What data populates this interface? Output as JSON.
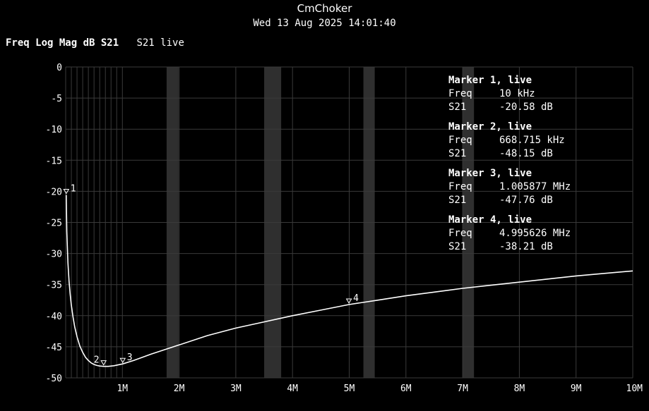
{
  "header": {
    "title": "CmChoker",
    "datetime": "Wed 13 Aug 2025 14:01:40",
    "trace_format": "Freq Log Mag dB S21",
    "trace_name": "S21 live"
  },
  "colors": {
    "background": "#000000",
    "trace": "#ffffff",
    "grid": "#3a3a3a",
    "band": "#2f2f2f"
  },
  "chart_data": {
    "type": "line",
    "title": "CmChoker",
    "xlabel": "",
    "ylabel": "",
    "xlim": [
      0,
      10000000
    ],
    "ylim": [
      -50,
      0
    ],
    "grid": true,
    "x_ticks": [
      {
        "value": 1000000,
        "label": "1M"
      },
      {
        "value": 2000000,
        "label": "2M"
      },
      {
        "value": 3000000,
        "label": "3M"
      },
      {
        "value": 4000000,
        "label": "4M"
      },
      {
        "value": 5000000,
        "label": "5M"
      },
      {
        "value": 6000000,
        "label": "6M"
      },
      {
        "value": 7000000,
        "label": "7M"
      },
      {
        "value": 8000000,
        "label": "8M"
      },
      {
        "value": 9000000,
        "label": "9M"
      },
      {
        "value": 10000000,
        "label": "10M"
      }
    ],
    "y_ticks": [
      0,
      -5,
      -10,
      -15,
      -20,
      -25,
      -30,
      -35,
      -40,
      -45,
      -50
    ],
    "highlight_bands": [
      {
        "from": 1780000,
        "to": 1990000
      },
      {
        "from": 3500000,
        "to": 3800000
      },
      {
        "from": 5250000,
        "to": 5450000
      },
      {
        "from": 7000000,
        "to": 7200000
      }
    ],
    "series": [
      {
        "values": [
          [
            10000,
            -20.58
          ],
          [
            20000,
            -26.5
          ],
          [
            40000,
            -31.5
          ],
          [
            60000,
            -34.5
          ],
          [
            80000,
            -36.6
          ],
          [
            100000,
            -38.3
          ],
          [
            130000,
            -40.2
          ],
          [
            160000,
            -41.8
          ],
          [
            200000,
            -43.4
          ],
          [
            250000,
            -44.9
          ],
          [
            300000,
            -45.9
          ],
          [
            350000,
            -46.7
          ],
          [
            400000,
            -47.2
          ],
          [
            450000,
            -47.6
          ],
          [
            500000,
            -47.85
          ],
          [
            550000,
            -48.0
          ],
          [
            600000,
            -48.1
          ],
          [
            668715,
            -48.15
          ],
          [
            750000,
            -48.15
          ],
          [
            850000,
            -48.05
          ],
          [
            1005877,
            -47.76
          ],
          [
            1200000,
            -47.2
          ],
          [
            1500000,
            -46.2
          ],
          [
            2000000,
            -44.7
          ],
          [
            2500000,
            -43.2
          ],
          [
            3000000,
            -42.0
          ],
          [
            3500000,
            -41.0
          ],
          [
            4000000,
            -40.0
          ],
          [
            4500000,
            -39.1
          ],
          [
            4995626,
            -38.21
          ],
          [
            5500000,
            -37.5
          ],
          [
            6000000,
            -36.8
          ],
          [
            6500000,
            -36.2
          ],
          [
            7000000,
            -35.6
          ],
          [
            7500000,
            -35.1
          ],
          [
            8000000,
            -34.6
          ],
          [
            8500000,
            -34.1
          ],
          [
            9000000,
            -33.6
          ],
          [
            9500000,
            -33.2
          ],
          [
            10000000,
            -32.8
          ]
        ]
      }
    ],
    "markers": [
      {
        "id": "1",
        "freq_hz": 10000,
        "db": -20.58,
        "title": "Marker 1, live",
        "freq_label": "Freq",
        "freq": "10 kHz",
        "param_label": "S21",
        "value": "-20.58 dB"
      },
      {
        "id": "2",
        "freq_hz": 668715,
        "db": -48.15,
        "title": "Marker 2, live",
        "freq_label": "Freq",
        "freq": "668.715 kHz",
        "param_label": "S21",
        "value": "-48.15 dB"
      },
      {
        "id": "3",
        "freq_hz": 1005877,
        "db": -47.76,
        "title": "Marker 3, live",
        "freq_label": "Freq",
        "freq": "1.005877 MHz",
        "param_label": "S21",
        "value": "-47.76 dB"
      },
      {
        "id": "4",
        "freq_hz": 4995626,
        "db": -38.21,
        "title": "Marker 4, live",
        "freq_label": "Freq",
        "freq": "4.995626 MHz",
        "param_label": "S21",
        "value": "-38.21 dB"
      }
    ]
  }
}
